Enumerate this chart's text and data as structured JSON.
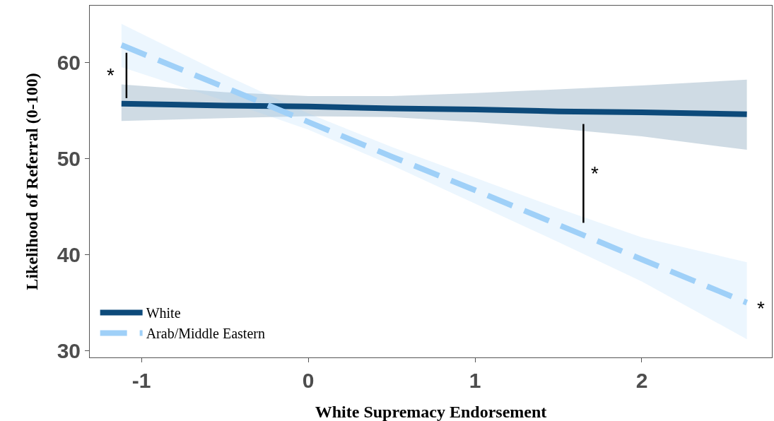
{
  "chart_data": {
    "type": "line",
    "xlabel": "White Supremacy Endorsement",
    "ylabel": "Likelihood of Referral (0-100)",
    "x": [
      -1.12,
      -0.5,
      0,
      0.5,
      1,
      1.5,
      2,
      2.63
    ],
    "series": [
      {
        "name": "White",
        "color": "#0d4a7a",
        "line_style": "solid",
        "values": [
          55.7,
          55.5,
          55.4,
          55.2,
          55.1,
          54.9,
          54.8,
          54.6
        ],
        "lower": [
          53.9,
          54.2,
          54.4,
          54.3,
          53.8,
          53.1,
          52.3,
          50.9
        ],
        "upper": [
          57.7,
          56.9,
          56.5,
          56.5,
          56.8,
          57.2,
          57.6,
          58.2
        ]
      },
      {
        "name": "Arab/Middle Eastern",
        "color": "#9fd0f8",
        "line_style": "dashed",
        "values": [
          61.8,
          57.4,
          53.8,
          50.2,
          46.7,
          43.1,
          39.5,
          35.0
        ],
        "lower": [
          59.5,
          56.0,
          53.0,
          49.3,
          45.3,
          41.3,
          37.2,
          31.2
        ],
        "upper": [
          64.0,
          58.7,
          54.7,
          51.2,
          48.0,
          44.8,
          41.8,
          39.2
        ]
      }
    ],
    "xlim": [
      -1.31,
      2.78
    ],
    "xticks": [
      -1,
      0,
      1,
      2
    ],
    "ylim": [
      29.3,
      65.9
    ],
    "yticks": [
      30,
      40,
      50,
      60
    ],
    "grid": false,
    "legend": "bottom left",
    "marker": "none",
    "annotations": [
      {
        "text": "*",
        "x": -1.09,
        "y": 61.6
      },
      {
        "text": "*",
        "x": 1.65,
        "y": 42.0
      },
      {
        "text": "*",
        "x": 2.63,
        "y": 35.0
      }
    ]
  }
}
